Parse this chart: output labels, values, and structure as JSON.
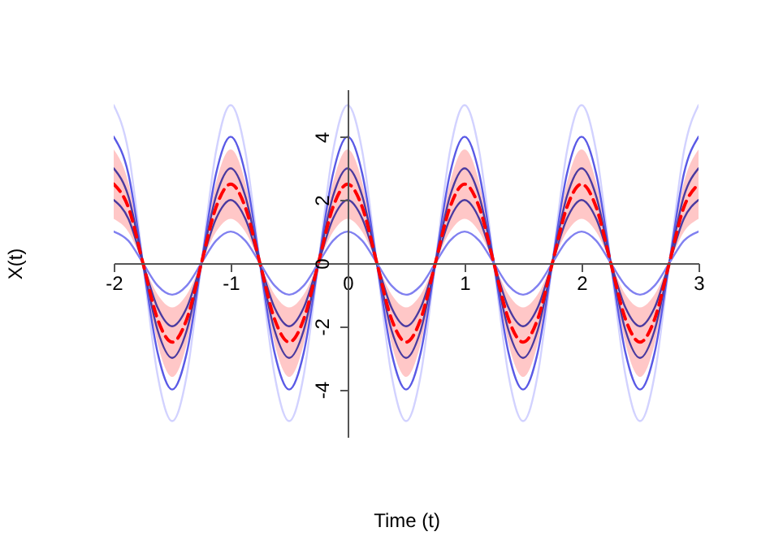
{
  "chart_data": {
    "type": "line",
    "xlabel": "Time (t)",
    "ylabel": "X(t)",
    "x": [
      -2,
      -1.875,
      -1.75,
      -1.625,
      -1.5,
      -1.375,
      -1.25,
      -1.125,
      -1,
      -0.875,
      -0.75,
      -0.625,
      -0.5,
      -0.375,
      -0.25,
      -0.125,
      0,
      0.125,
      0.25,
      0.375,
      0.5,
      0.625,
      0.75,
      0.875,
      1,
      1.125,
      1.25,
      1.375,
      1.5,
      1.625,
      1.75,
      1.875,
      2,
      2.125,
      2.25,
      2.375,
      2.5,
      2.625,
      2.75,
      2.875,
      3
    ],
    "xlim": [
      -2,
      3
    ],
    "xticks": [
      -2,
      -1,
      0,
      1,
      2,
      3
    ],
    "ylim": [
      -5.5,
      5.5
    ],
    "yticks": [
      -4,
      -2,
      0,
      2,
      4
    ],
    "grid": false,
    "marker": "none",
    "series": [
      {
        "color": "#d2d2ff",
        "line_style": "solid",
        "values": [
          5,
          3.54,
          0,
          -3.54,
          -5,
          -3.54,
          0,
          3.54,
          5,
          3.54,
          0,
          -3.54,
          -5,
          -3.54,
          0,
          3.54,
          5,
          3.54,
          0,
          -3.54,
          -5,
          -3.54,
          0,
          3.54,
          5,
          3.54,
          0,
          -3.54,
          -5,
          -3.54,
          0,
          3.54,
          5,
          3.54,
          0,
          -3.54,
          -5,
          -3.54,
          0,
          3.54,
          5
        ]
      },
      {
        "color": "#5a5ae6",
        "line_style": "solid",
        "values": [
          4,
          2.83,
          0,
          -2.83,
          -4,
          -2.83,
          0,
          2.83,
          4,
          2.83,
          0,
          -2.83,
          -4,
          -2.83,
          0,
          2.83,
          4,
          2.83,
          0,
          -2.83,
          -4,
          -2.83,
          0,
          2.83,
          4,
          2.83,
          0,
          -2.83,
          -4,
          -2.83,
          0,
          2.83,
          4,
          2.83,
          0,
          -2.83,
          -4,
          -2.83,
          0,
          2.83,
          4
        ]
      },
      {
        "color": "#4a3aa0",
        "line_style": "solid",
        "values": [
          3,
          2.12,
          0,
          -2.12,
          -3,
          -2.12,
          0,
          2.12,
          3,
          2.12,
          0,
          -2.12,
          -3,
          -2.12,
          0,
          2.12,
          3,
          2.12,
          0,
          -2.12,
          -3,
          -2.12,
          0,
          2.12,
          3,
          2.12,
          0,
          -2.12,
          -3,
          -2.12,
          0,
          2.12,
          3,
          2.12,
          0,
          -2.12,
          -3,
          -2.12,
          0,
          2.12,
          3
        ]
      },
      {
        "color": "#4a3aa0",
        "line_style": "solid",
        "values": [
          2,
          1.41,
          0,
          -1.41,
          -2,
          -1.41,
          0,
          1.41,
          2,
          1.41,
          0,
          -1.41,
          -2,
          -1.41,
          0,
          1.41,
          2,
          1.41,
          0,
          -1.41,
          -2,
          -1.41,
          0,
          1.41,
          2,
          1.41,
          0,
          -1.41,
          -2,
          -1.41,
          0,
          1.41,
          2,
          1.41,
          0,
          -1.41,
          -2,
          -1.41,
          0,
          1.41,
          2
        ]
      },
      {
        "color": "#8080f0",
        "line_style": "solid",
        "values": [
          1,
          0.71,
          0,
          -0.71,
          -1,
          -0.71,
          0,
          0.71,
          1,
          0.71,
          0,
          -0.71,
          -1,
          -0.71,
          0,
          0.71,
          1,
          0.71,
          0,
          -0.71,
          -1,
          -0.71,
          0,
          0.71,
          1,
          0.71,
          0,
          -0.71,
          -1,
          -0.71,
          0,
          0.71,
          1,
          0.71,
          0,
          -0.71,
          -1,
          -0.71,
          0,
          0.71,
          1
        ]
      },
      {
        "color": "#ff0000",
        "line_style": "dashed",
        "values": [
          2.5,
          1.77,
          0,
          -1.77,
          -2.5,
          -1.77,
          0,
          1.77,
          2.5,
          1.77,
          0,
          -1.77,
          -2.5,
          -1.77,
          0,
          1.77,
          2.5,
          1.77,
          0,
          -1.77,
          -2.5,
          -1.77,
          0,
          1.77,
          2.5,
          1.77,
          0,
          -1.77,
          -2.5,
          -1.77,
          0,
          1.77,
          2.5,
          1.77,
          0,
          -1.77,
          -2.5,
          -1.77,
          0,
          1.77,
          2.5
        ],
        "upper": [
          3.6,
          2.55,
          0,
          -2.55,
          -3.6,
          -2.55,
          0,
          2.55,
          3.6,
          2.55,
          0,
          -2.55,
          -3.6,
          -2.55,
          0,
          2.55,
          3.6,
          2.55,
          0,
          -2.55,
          -3.6,
          -2.55,
          0,
          2.55,
          3.6,
          2.55,
          0,
          -2.55,
          -3.6,
          -2.55,
          0,
          2.55,
          3.6,
          2.55,
          0,
          -2.55,
          -3.6,
          -2.55,
          0,
          2.55,
          3.6
        ],
        "lower": [
          1.4,
          0.99,
          0,
          -0.99,
          -1.4,
          -0.99,
          0,
          0.99,
          1.4,
          0.99,
          0,
          -0.99,
          -1.4,
          -0.99,
          0,
          0.99,
          1.4,
          0.99,
          0,
          -0.99,
          -1.4,
          -0.99,
          0,
          0.99,
          1.4,
          0.99,
          0,
          -0.99,
          -1.4,
          -0.99,
          0,
          0.99,
          1.4,
          0.99,
          0,
          -0.99,
          -1.4,
          -0.99,
          0,
          0.99,
          1.4
        ]
      }
    ]
  }
}
